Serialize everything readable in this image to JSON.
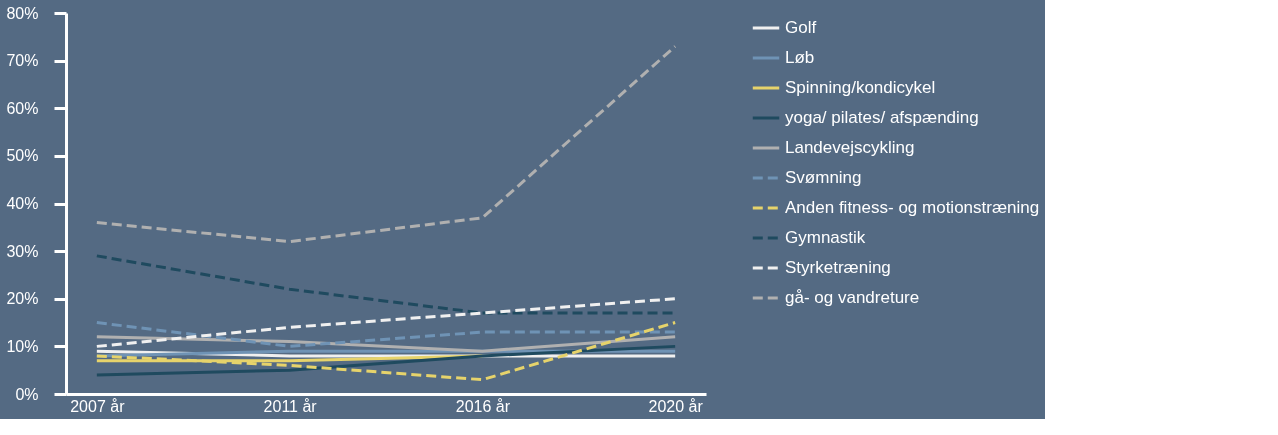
{
  "chart_data": {
    "type": "line",
    "categories": [
      "2007 år",
      "2011 år",
      "2016 år",
      "2020 år"
    ],
    "series": [
      {
        "name": "Golf",
        "color": "#f0f0f0",
        "line_style": "solid",
        "values": [
          9,
          8,
          8,
          8
        ]
      },
      {
        "name": "Løb",
        "color": "#6f93b5",
        "line_style": "solid",
        "values": [
          8,
          9,
          9,
          9
        ]
      },
      {
        "name": "Spinning/kondicykel",
        "color": "#e6d36b",
        "line_style": "solid",
        "values": [
          7,
          7,
          8,
          null
        ]
      },
      {
        "name": "yoga/ pilates/ afspænding",
        "color": "#1f4a5f",
        "line_style": "solid",
        "values": [
          4,
          5,
          8,
          10
        ]
      },
      {
        "name": "Landevejscykling",
        "color": "#b0b0b0",
        "line_style": "solid",
        "values": [
          12,
          11,
          9,
          12
        ]
      },
      {
        "name": "Svømning",
        "color": "#6f93b5",
        "line_style": "dashed",
        "values": [
          15,
          10,
          13,
          13
        ]
      },
      {
        "name": "Anden fitness- og motionstræning",
        "color": "#e6d36b",
        "line_style": "dashed",
        "values": [
          8,
          6,
          3,
          15
        ]
      },
      {
        "name": "Gymnastik",
        "color": "#1f4a5f",
        "line_style": "dashed",
        "values": [
          29,
          22,
          17,
          17
        ]
      },
      {
        "name": "Styrketræning",
        "color": "#f0f0f0",
        "line_style": "dashed",
        "values": [
          10,
          14,
          17,
          20
        ]
      },
      {
        "name": "gå- og vandreture",
        "color": "#b0b0b0",
        "line_style": "dashed",
        "values": [
          36,
          32,
          37,
          73
        ]
      }
    ],
    "ylim": [
      0,
      80
    ],
    "yticks": [
      {
        "value": 0,
        "label": "0%"
      },
      {
        "value": 10,
        "label": "10%"
      },
      {
        "value": 20,
        "label": "20%"
      },
      {
        "value": 30,
        "label": "30%"
      },
      {
        "value": 40,
        "label": "40%"
      },
      {
        "value": 50,
        "label": "50%"
      },
      {
        "value": 60,
        "label": "60%"
      },
      {
        "value": 70,
        "label": "70%"
      },
      {
        "value": 80,
        "label": "80%"
      }
    ],
    "grid": false,
    "legend": "top right",
    "marker": "none"
  }
}
